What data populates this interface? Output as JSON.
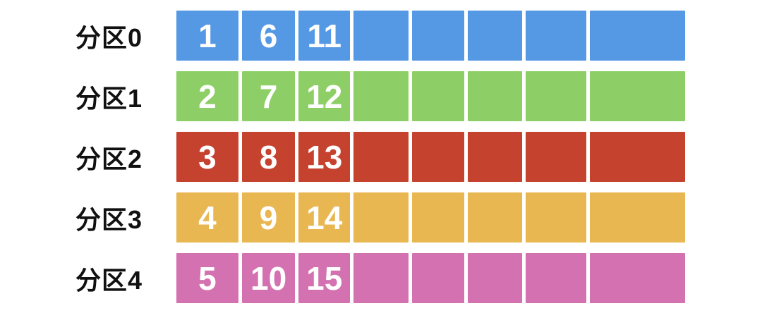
{
  "diagram": {
    "description": "partition-message-distribution",
    "rows": [
      {
        "label": "分区0",
        "color": "#5598E4",
        "cells": [
          "1",
          "6",
          "11",
          "",
          "",
          "",
          "",
          ""
        ]
      },
      {
        "label": "分区1",
        "color": "#8DCF66",
        "cells": [
          "2",
          "7",
          "12",
          "",
          "",
          "",
          "",
          ""
        ]
      },
      {
        "label": "分区2",
        "color": "#C5422F",
        "cells": [
          "3",
          "8",
          "13",
          "",
          "",
          "",
          "",
          ""
        ]
      },
      {
        "label": "分区3",
        "color": "#E8B751",
        "cells": [
          "4",
          "9",
          "14",
          "",
          "",
          "",
          "",
          ""
        ]
      },
      {
        "label": "分区4",
        "color": "#D471B1",
        "cells": [
          "5",
          "10",
          "15",
          "",
          "",
          "",
          "",
          ""
        ]
      }
    ],
    "colors": {
      "background": "#ffffff",
      "label_text": "#111111",
      "cell_text": "#ffffff",
      "partition0": "#5598E4",
      "partition1": "#8DCF66",
      "partition2": "#C5422F",
      "partition3": "#E8B751",
      "partition4": "#D471B1"
    }
  }
}
